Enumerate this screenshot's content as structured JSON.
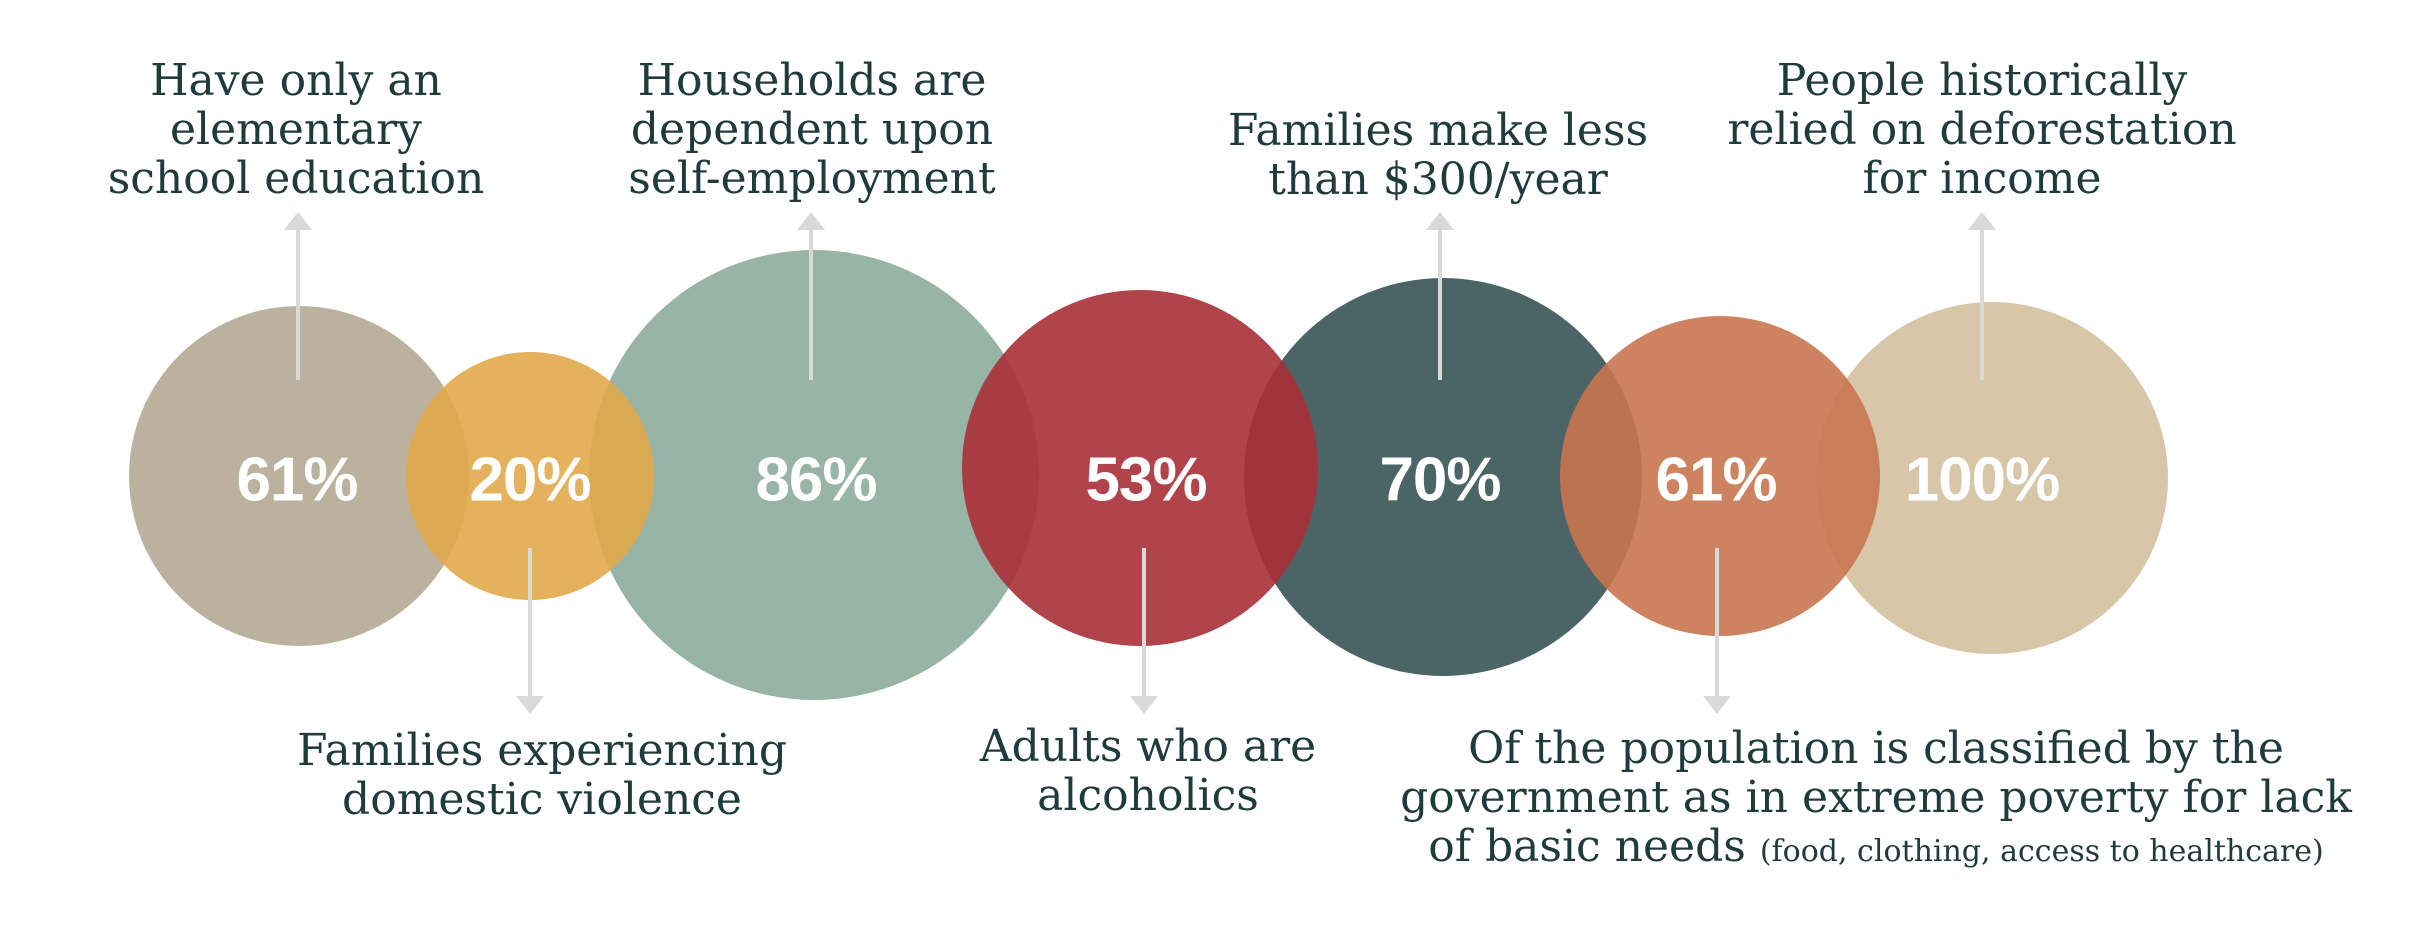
{
  "stats": [
    {
      "value": "61%",
      "label_lines": [
        "Have only an",
        "elementary",
        "school education"
      ],
      "color": "#b3aa93",
      "direction": "up"
    },
    {
      "value": "20%",
      "label_lines": [
        "Families experiencing",
        "domestic violence"
      ],
      "color": "#e1a84a",
      "direction": "down"
    },
    {
      "value": "86%",
      "label_lines": [
        "Households are",
        "dependent upon",
        "self-employment"
      ],
      "color": "#97b4a6",
      "direction": "up"
    },
    {
      "value": "53%",
      "label_lines": [
        "Adults who are",
        "alcoholics"
      ],
      "color": "#a92f37",
      "direction": "down"
    },
    {
      "value": "70%",
      "label_lines": [
        "Families make less",
        "than $300/year"
      ],
      "color": "#375355",
      "direction": "up"
    },
    {
      "value": "61%",
      "label_lines": [
        "Of the population is classified by the",
        "government as in extreme poverty for lack",
        "of basic needs"
      ],
      "label_note": "(food, clothing, access to healthcare)",
      "color": "#c8744f",
      "direction": "down"
    },
    {
      "value": "100%",
      "label_lines": [
        "People historically",
        "relied on deforestation",
        "for income"
      ],
      "color": "#d4c0a0",
      "direction": "up"
    }
  ]
}
